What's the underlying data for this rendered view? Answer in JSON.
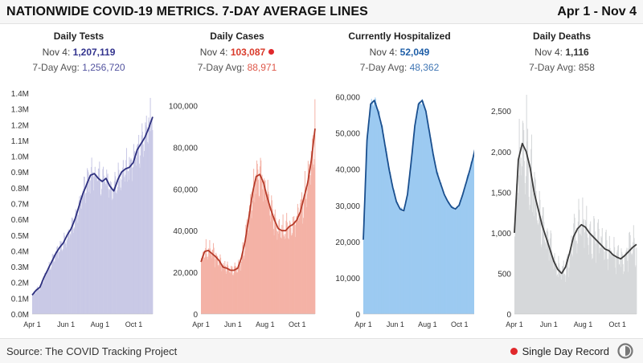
{
  "header": {
    "title": "NATIONWIDE COVID-19 METRICS. 7-DAY AVERAGE LINES",
    "date_range": "Apr 1 - Nov 4"
  },
  "footer": {
    "source": "Source: The COVID Tracking Project",
    "legend_label": "Single Day Record",
    "legend_color": "#e0282c",
    "logo_icon": "ctp-logo-icon"
  },
  "panels": [
    {
      "title": "Daily Tests",
      "latest_prefix": "Nov 4:",
      "latest_value": "1,207,119",
      "avg_prefix": "7-Day Avg:",
      "avg_value": "1,256,720",
      "value_color": "#33348e",
      "record": false
    },
    {
      "title": "Daily Cases",
      "latest_prefix": "Nov 4:",
      "latest_value": "103,087",
      "avg_prefix": "7-Day Avg:",
      "avg_value": "88,971",
      "value_color": "#d93a2a",
      "record": true
    },
    {
      "title": "Currently Hospitalized",
      "latest_prefix": "Nov 4:",
      "latest_value": "52,049",
      "avg_prefix": "7-Day Avg:",
      "avg_value": "48,362",
      "value_color": "#1f5fa8",
      "record": false
    },
    {
      "title": "Daily Deaths",
      "latest_prefix": "Nov 4:",
      "latest_value": "1,116",
      "avg_prefix": "7-Day Avg:",
      "avg_value": "858",
      "value_color": "#333333",
      "record": false
    }
  ],
  "chart_data": [
    {
      "type": "bar",
      "title": "Daily Tests",
      "x_ticks": [
        "Apr 1",
        "Jun 1",
        "Aug 1",
        "Oct 1"
      ],
      "x_tick_day_index": [
        0,
        61,
        122,
        183
      ],
      "y_ticks": [
        0,
        100000,
        200000,
        300000,
        400000,
        500000,
        600000,
        700000,
        800000,
        900000,
        1000000,
        1100000,
        1200000,
        1300000,
        1400000
      ],
      "y_tick_labels": [
        "0.0M",
        "0.1M",
        "0.2M",
        "0.3M",
        "0.4M",
        "0.5M",
        "0.6M",
        "0.7M",
        "0.8M",
        "0.9M",
        "1.0M",
        "1.1M",
        "1.2M",
        "1.3M",
        "1.4M"
      ],
      "ylim": [
        0,
        1400000
      ],
      "bar_color": "#c9c9e6",
      "line_color": "#2d2f7e",
      "avg_x": [
        0,
        7,
        14,
        21,
        28,
        35,
        42,
        49,
        56,
        63,
        70,
        77,
        84,
        91,
        98,
        105,
        112,
        119,
        126,
        133,
        140,
        147,
        154,
        161,
        168,
        175,
        182,
        189,
        196,
        203,
        210,
        217
      ],
      "avg_y": [
        120000,
        150000,
        170000,
        230000,
        280000,
        330000,
        380000,
        420000,
        450000,
        500000,
        540000,
        600000,
        680000,
        760000,
        820000,
        880000,
        890000,
        860000,
        840000,
        860000,
        810000,
        780000,
        850000,
        900000,
        920000,
        930000,
        960000,
        1040000,
        1080000,
        1120000,
        1180000,
        1250000
      ],
      "bar_noise": 0.09,
      "bar_peak_day": 213,
      "bar_peak_value": 1370000
    },
    {
      "type": "bar",
      "title": "Daily Cases",
      "x_ticks": [
        "Apr 1",
        "Jun 1",
        "Aug 1",
        "Oct 1"
      ],
      "x_tick_day_index": [
        0,
        61,
        122,
        183
      ],
      "y_ticks": [
        0,
        20000,
        40000,
        60000,
        80000,
        100000
      ],
      "y_tick_labels": [
        "0",
        "20,000",
        "40,000",
        "60,000",
        "80,000",
        "100,000"
      ],
      "ylim": [
        0,
        106000
      ],
      "bar_color": "#f4b2a6",
      "line_color": "#b53a28",
      "avg_x": [
        0,
        7,
        14,
        21,
        28,
        35,
        42,
        49,
        56,
        63,
        70,
        77,
        84,
        91,
        98,
        105,
        112,
        119,
        126,
        133,
        140,
        147,
        154,
        161,
        168,
        175,
        182,
        189,
        196,
        203,
        210,
        217
      ],
      "avg_y": [
        25000,
        30000,
        30500,
        29000,
        27500,
        25500,
        22500,
        22000,
        21000,
        21000,
        22000,
        27000,
        35000,
        46000,
        58000,
        66000,
        67000,
        63000,
        56000,
        50000,
        45000,
        41000,
        40000,
        40000,
        42000,
        43000,
        45000,
        49000,
        56000,
        63000,
        74000,
        89000
      ],
      "bar_noise": 0.12,
      "bar_peak_day": 217,
      "bar_peak_value": 103087
    },
    {
      "type": "area",
      "title": "Currently Hospitalized",
      "x_ticks": [
        "Apr 1",
        "Jun 1",
        "Aug 1",
        "Oct 1"
      ],
      "x_tick_day_index": [
        0,
        61,
        122,
        183
      ],
      "y_ticks": [
        0,
        10000,
        20000,
        30000,
        40000,
        50000,
        60000
      ],
      "y_tick_labels": [
        "0",
        "10,000",
        "20,000",
        "30,000",
        "40,000",
        "50,000",
        "60,000"
      ],
      "ylim": [
        0,
        61000
      ],
      "bar_color": "#9ccaf1",
      "line_color": "#1a4f8e",
      "avg_x": [
        0,
        7,
        14,
        21,
        28,
        35,
        42,
        49,
        56,
        63,
        70,
        77,
        84,
        91,
        98,
        105,
        112,
        119,
        126,
        133,
        140,
        147,
        154,
        161,
        168,
        175,
        182,
        189,
        196,
        203,
        210,
        217
      ],
      "avg_y": [
        20500,
        48000,
        58000,
        59000,
        56000,
        52000,
        46000,
        40000,
        35000,
        31000,
        29000,
        28500,
        33000,
        42000,
        52000,
        58000,
        59000,
        56000,
        50000,
        44000,
        39000,
        36000,
        33000,
        31000,
        29500,
        29000,
        30000,
        33000,
        36500,
        40000,
        44000,
        48500
      ],
      "bar_noise": 0.015,
      "bar_peak_day": 217,
      "bar_peak_value": 52049
    },
    {
      "type": "bar",
      "title": "Daily Deaths",
      "x_ticks": [
        "Apr 1",
        "Jun 1",
        "Aug 1",
        "Oct 1"
      ],
      "x_tick_day_index": [
        0,
        61,
        122,
        183
      ],
      "y_ticks": [
        0,
        500,
        1000,
        1500,
        2000,
        2500
      ],
      "y_tick_labels": [
        "0",
        "500",
        "1,000",
        "1,500",
        "2,000",
        "2,500"
      ],
      "ylim": [
        0,
        2720
      ],
      "bar_color": "#d6d8da",
      "line_color": "#3a3a3a",
      "avg_x": [
        0,
        7,
        14,
        21,
        28,
        35,
        42,
        49,
        56,
        63,
        70,
        77,
        84,
        91,
        98,
        105,
        112,
        119,
        126,
        133,
        140,
        147,
        154,
        161,
        168,
        175,
        182,
        189,
        196,
        203,
        210,
        217
      ],
      "avg_y": [
        1000,
        1900,
        2100,
        2000,
        1800,
        1500,
        1300,
        1100,
        950,
        800,
        650,
        550,
        500,
        580,
        750,
        950,
        1050,
        1100,
        1070,
        1000,
        950,
        900,
        850,
        800,
        780,
        730,
        700,
        680,
        720,
        770,
        820,
        858
      ],
      "bar_noise": 0.22,
      "bar_peak_day": 21,
      "bar_peak_value": 2700
    }
  ]
}
